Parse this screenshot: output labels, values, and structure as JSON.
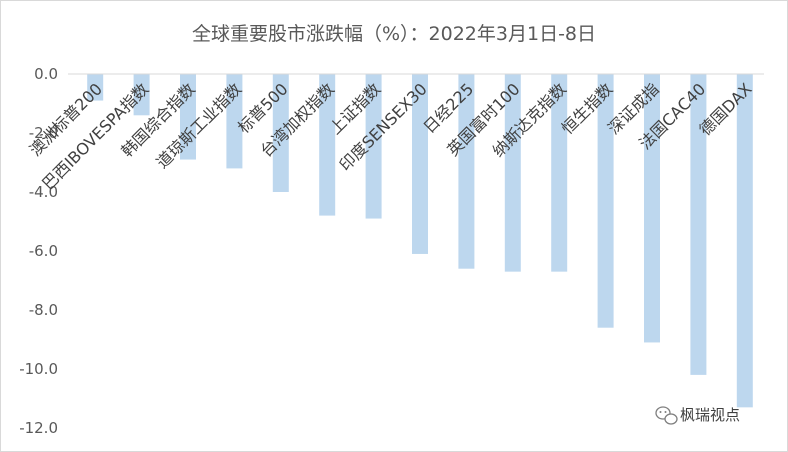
{
  "chart_data": {
    "type": "bar",
    "title": "全球重要股市涨跌幅（%）：2022年3月1日-8日",
    "xlabel": "",
    "ylabel": "",
    "ylim": [
      -12.0,
      0.0
    ],
    "yticks": [
      0.0,
      -2.0,
      -4.0,
      -6.0,
      -8.0,
      -10.0,
      -12.0
    ],
    "ytick_labels": [
      "0.0",
      "-2.0",
      "-4.0",
      "-6.0",
      "-8.0",
      "-10.0",
      "-12.0"
    ],
    "grid": false,
    "bar_color": "#bdd7ee",
    "categories": [
      "澳洲标普200",
      "巴西IBOVESPA指数",
      "韩国综合指数",
      "道琼斯工业指数",
      "标普500",
      "台湾加权指数",
      "上证指数",
      "印度SENSEX30",
      "日经225",
      "英国富时100",
      "纳斯达克指数",
      "恒生指数",
      "深证成指",
      "法国CAC40",
      "德国DAX"
    ],
    "values": [
      -0.9,
      -1.4,
      -2.9,
      -3.2,
      -4.0,
      -4.8,
      -4.9,
      -6.1,
      -6.6,
      -6.7,
      -6.7,
      -8.6,
      -9.1,
      -10.2,
      -11.3
    ]
  },
  "watermark": {
    "text": "枫瑞视点",
    "icon": "wechat-icon"
  }
}
